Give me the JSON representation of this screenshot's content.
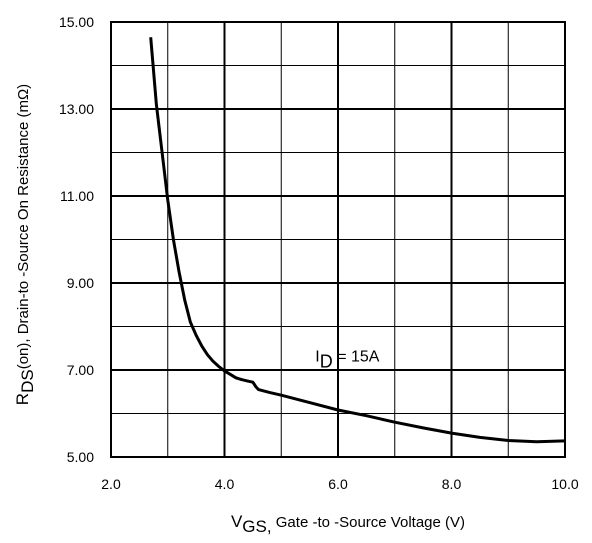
{
  "chart_data": {
    "type": "line",
    "title": "",
    "xlabel": {
      "main": "V",
      "sub": "GS,",
      "rest": " Gate -to -Source Voltage  (V)"
    },
    "ylabel": {
      "prefix": "R",
      "sub": "DS",
      "mid": "(on),   Drain-to -Source On Resistance (m",
      "symbol": "Ω",
      "suffix": ")"
    },
    "xlim": [
      2.0,
      10.0
    ],
    "ylim": [
      5.0,
      15.0
    ],
    "x_ticks": [
      "2.0",
      "4.0",
      "6.0",
      "8.0",
      "10.0"
    ],
    "y_ticks": [
      "5.00",
      "7.00",
      "9.00",
      "11.00",
      "13.00",
      "15.00"
    ],
    "grid": true,
    "grid_x_step": 1.0,
    "grid_y_step": 1.0,
    "annotation": {
      "prefix": "I",
      "sub": "D",
      "rest": " = 15A",
      "x": 5.6,
      "y": 7.2
    },
    "series": [
      {
        "color": "#000000",
        "x": [
          2.7,
          2.8,
          2.9,
          3.0,
          3.1,
          3.2,
          3.3,
          3.4,
          3.5,
          3.6,
          3.7,
          3.8,
          3.9,
          4.0,
          4.1,
          4.2,
          4.3,
          4.4,
          4.5,
          4.55,
          4.6,
          4.8,
          5.0,
          5.5,
          6.0,
          6.5,
          7.0,
          7.5,
          8.0,
          8.5,
          9.0,
          9.5,
          10.0
        ],
        "y": [
          14.65,
          13.1,
          12.0,
          10.9,
          10.0,
          9.25,
          8.6,
          8.1,
          7.8,
          7.55,
          7.35,
          7.2,
          7.08,
          6.98,
          6.9,
          6.82,
          6.78,
          6.75,
          6.72,
          6.62,
          6.55,
          6.48,
          6.42,
          6.25,
          6.08,
          5.95,
          5.8,
          5.67,
          5.55,
          5.45,
          5.38,
          5.35,
          5.37
        ]
      }
    ]
  }
}
